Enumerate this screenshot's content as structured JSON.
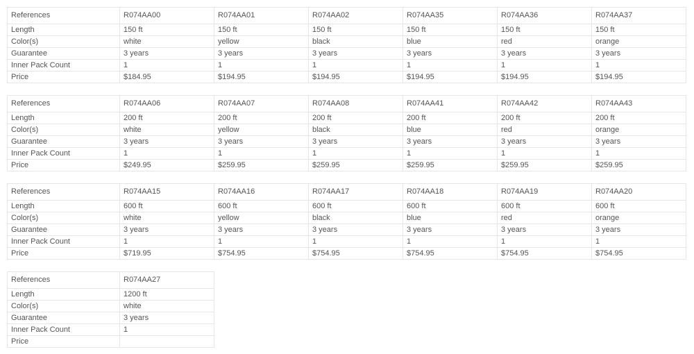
{
  "row_labels": [
    "References",
    "Length",
    "Color(s)",
    "Guarantee",
    "Inner Pack Count",
    "Price"
  ],
  "tables": [
    {
      "products": [
        {
          "ref": "R074AA00",
          "length": "150 ft",
          "color": "white",
          "guarantee": "3 years",
          "inner_pack": "1",
          "price": "$184.95"
        },
        {
          "ref": "R074AA01",
          "length": "150 ft",
          "color": "yellow",
          "guarantee": "3 years",
          "inner_pack": "1",
          "price": "$194.95"
        },
        {
          "ref": "R074AA02",
          "length": "150 ft",
          "color": "black",
          "guarantee": "3 years",
          "inner_pack": "1",
          "price": "$194.95"
        },
        {
          "ref": "R074AA35",
          "length": "150 ft",
          "color": "blue",
          "guarantee": "3 years",
          "inner_pack": "1",
          "price": "$194.95"
        },
        {
          "ref": "R074AA36",
          "length": "150 ft",
          "color": "red",
          "guarantee": "3 years",
          "inner_pack": "1",
          "price": "$194.95"
        },
        {
          "ref": "R074AA37",
          "length": "150 ft",
          "color": "orange",
          "guarantee": "3 years",
          "inner_pack": "1",
          "price": "$194.95"
        }
      ]
    },
    {
      "products": [
        {
          "ref": "R074AA06",
          "length": "200 ft",
          "color": "white",
          "guarantee": "3 years",
          "inner_pack": "1",
          "price": "$249.95"
        },
        {
          "ref": "R074AA07",
          "length": "200 ft",
          "color": "yellow",
          "guarantee": "3 years",
          "inner_pack": "1",
          "price": "$259.95"
        },
        {
          "ref": "R074AA08",
          "length": "200 ft",
          "color": "black",
          "guarantee": "3 years",
          "inner_pack": "1",
          "price": "$259.95"
        },
        {
          "ref": "R074AA41",
          "length": "200 ft",
          "color": "blue",
          "guarantee": "3 years",
          "inner_pack": "1",
          "price": "$259.95"
        },
        {
          "ref": "R074AA42",
          "length": "200 ft",
          "color": "red",
          "guarantee": "3 years",
          "inner_pack": "1",
          "price": "$259.95"
        },
        {
          "ref": "R074AA43",
          "length": "200 ft",
          "color": "orange",
          "guarantee": "3 years",
          "inner_pack": "1",
          "price": "$259.95"
        }
      ]
    },
    {
      "products": [
        {
          "ref": "R074AA15",
          "length": "600 ft",
          "color": "white",
          "guarantee": "3 years",
          "inner_pack": "1",
          "price": "$719.95"
        },
        {
          "ref": "R074AA16",
          "length": "600 ft",
          "color": "yellow",
          "guarantee": "3 years",
          "inner_pack": "1",
          "price": "$754.95"
        },
        {
          "ref": "R074AA17",
          "length": "600 ft",
          "color": "black",
          "guarantee": "3 years",
          "inner_pack": "1",
          "price": "$754.95"
        },
        {
          "ref": "R074AA18",
          "length": "600 ft",
          "color": "blue",
          "guarantee": "3 years",
          "inner_pack": "1",
          "price": "$754.95"
        },
        {
          "ref": "R074AA19",
          "length": "600 ft",
          "color": "red",
          "guarantee": "3 years",
          "inner_pack": "1",
          "price": "$754.95"
        },
        {
          "ref": "R074AA20",
          "length": "600 ft",
          "color": "orange",
          "guarantee": "3 years",
          "inner_pack": "1",
          "price": "$754.95"
        }
      ]
    },
    {
      "products": [
        {
          "ref": "R074AA27",
          "length": "1200 ft",
          "color": "white",
          "guarantee": "3 years",
          "inner_pack": "1",
          "price": ""
        }
      ]
    }
  ]
}
